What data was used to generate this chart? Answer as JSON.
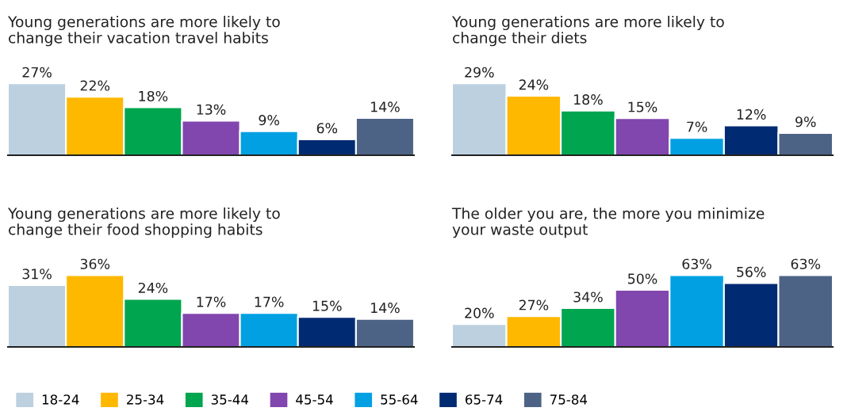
{
  "chart_data": [
    {
      "type": "bar",
      "title": "Young generations are more likely to\nchange their vacation travel habits",
      "categories": [
        null
      ],
      "legend": "bottom",
      "series": [
        {
          "name": "18-24",
          "color": "#bcd0e0",
          "values": [
            27
          ],
          "value_labels": [
            "27%"
          ]
        },
        {
          "name": "25-34",
          "color": "#ffb800",
          "values": [
            22
          ],
          "value_labels": [
            "22%"
          ]
        },
        {
          "name": "35-44",
          "color": "#00a54f",
          "values": [
            18
          ],
          "value_labels": [
            "18%"
          ]
        },
        {
          "name": "45-54",
          "color": "#8246af",
          "values": [
            13
          ],
          "value_labels": [
            "13%"
          ]
        },
        {
          "name": "55-64",
          "color": "#00a0e3",
          "values": [
            9
          ],
          "value_labels": [
            "9%"
          ]
        },
        {
          "name": "65-74",
          "color": "#002b73",
          "values": [
            6
          ],
          "value_labels": [
            "6%"
          ]
        },
        {
          "name": "75-84",
          "color": "#4d6386",
          "values": [
            14
          ],
          "value_labels": [
            "14%"
          ]
        }
      ]
    },
    {
      "type": "bar",
      "title": "Young generations are more likely to\nchange their diets",
      "categories": [
        null
      ],
      "series": [
        {
          "color": "#bcd0e0",
          "values": [
            29
          ],
          "value_labels": [
            "29%"
          ]
        },
        {
          "color": "#ffb800",
          "values": [
            24
          ],
          "value_labels": [
            "24%"
          ]
        },
        {
          "color": "#00a54f",
          "values": [
            18
          ],
          "value_labels": [
            "18%"
          ]
        },
        {
          "color": "#8246af",
          "values": [
            15
          ],
          "value_labels": [
            "15%"
          ]
        },
        {
          "color": "#00a0e3",
          "values": [
            7
          ],
          "value_labels": [
            "7%"
          ]
        },
        {
          "color": "#002b73",
          "values": [
            12
          ],
          "value_labels": [
            "12%"
          ]
        },
        {
          "color": "#4d6386",
          "values": [
            9
          ],
          "value_labels": [
            "9%"
          ]
        }
      ]
    },
    {
      "type": "bar",
      "title": "Young generations are more likely to\nchange their food shopping habits",
      "categories": [
        null
      ],
      "series": [
        {
          "color": "#bcd0e0",
          "values": [
            31
          ],
          "value_labels": [
            "31%"
          ]
        },
        {
          "color": "#ffb800",
          "values": [
            36
          ],
          "value_labels": [
            "36%"
          ]
        },
        {
          "color": "#00a54f",
          "values": [
            24
          ],
          "value_labels": [
            "24%"
          ]
        },
        {
          "color": "#8246af",
          "values": [
            17
          ],
          "value_labels": [
            "17%"
          ]
        },
        {
          "color": "#00a0e3",
          "values": [
            17
          ],
          "value_labels": [
            "17%"
          ]
        },
        {
          "color": "#002b73",
          "values": [
            15
          ],
          "value_labels": [
            "15%"
          ]
        },
        {
          "color": "#4d6386",
          "values": [
            14
          ],
          "value_labels": [
            "14%"
          ]
        }
      ]
    },
    {
      "type": "bar",
      "title": "The older you are, the more you minimize\nyour waste output",
      "categories": [
        null
      ],
      "series": [
        {
          "color": "#bcd0e0",
          "values": [
            20
          ],
          "value_labels": [
            "20%"
          ]
        },
        {
          "color": "#ffb800",
          "values": [
            27
          ],
          "value_labels": [
            "27%"
          ]
        },
        {
          "color": "#00a54f",
          "values": [
            34
          ],
          "value_labels": [
            "34%"
          ]
        },
        {
          "color": "#8246af",
          "values": [
            50
          ],
          "value_labels": [
            "50%"
          ]
        },
        {
          "color": "#00a0e3",
          "values": [
            63
          ],
          "value_labels": [
            "63%"
          ]
        },
        {
          "color": "#002b73",
          "values": [
            56
          ],
          "value_labels": [
            "56%"
          ]
        },
        {
          "color": "#4d6386",
          "values": [
            63
          ],
          "value_labels": [
            "63%"
          ]
        }
      ]
    }
  ]
}
